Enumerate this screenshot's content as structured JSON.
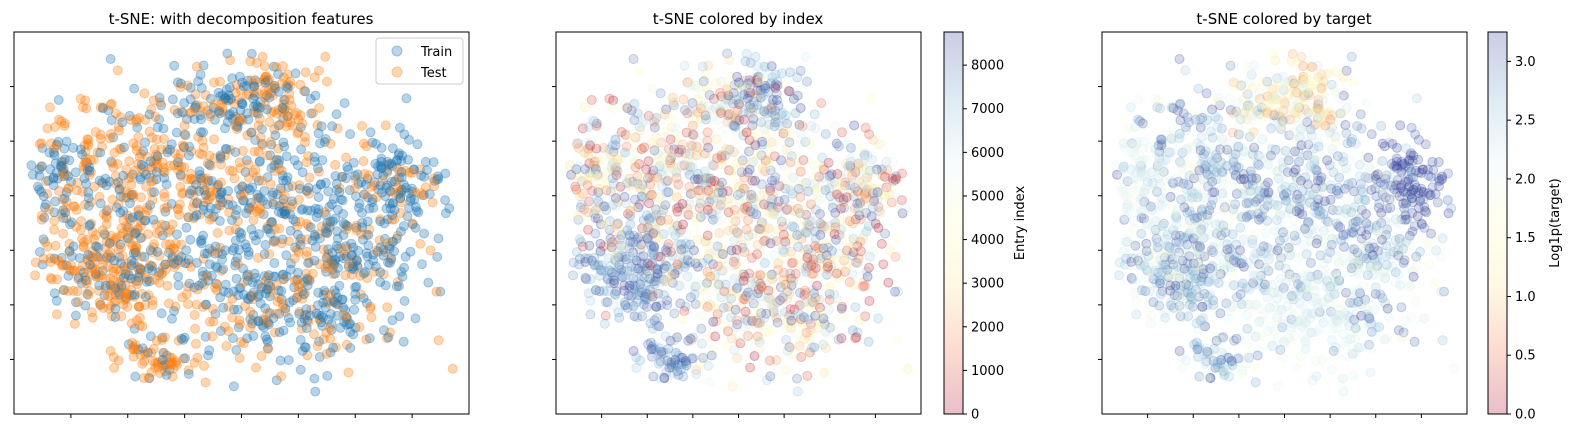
{
  "chart_data": [
    {
      "type": "scatter",
      "title": "t-SNE: with decomposition features",
      "xlabel": "",
      "ylabel": "",
      "x_tick_labels_visible": false,
      "y_tick_labels_visible": false,
      "xlim": [
        -50,
        50
      ],
      "ylim": [
        -50,
        50
      ],
      "legend": {
        "placement": "top-right",
        "entries": [
          "Train",
          "Test"
        ]
      },
      "series": [
        {
          "name": "Train",
          "color": "#1f77b4",
          "alpha": 0.2
        },
        {
          "name": "Test",
          "color": "#ff7f0e",
          "alpha": 0.2
        }
      ]
    },
    {
      "type": "scatter",
      "title": "t-SNE colored by index",
      "xlabel": "",
      "ylabel": "",
      "x_tick_labels_visible": false,
      "y_tick_labels_visible": false,
      "xlim": [
        -50,
        50
      ],
      "ylim": [
        -50,
        50
      ],
      "colormap": "RdYlBu",
      "colormap_stops": [
        "#a50026",
        "#f46d43",
        "#fee090",
        "#ffffbf",
        "#e0f3f8",
        "#74add1",
        "#313695"
      ],
      "alpha": 0.2,
      "colorbar": {
        "label": "Entry index",
        "range": [
          0,
          8760
        ],
        "ticks": [
          0,
          1000,
          2000,
          3000,
          4000,
          5000,
          6000,
          7000,
          8000
        ],
        "tick_labels": [
          "0",
          "1000",
          "2000",
          "3000",
          "4000",
          "5000",
          "6000",
          "7000",
          "8000"
        ]
      }
    },
    {
      "type": "scatter",
      "title": "t-SNE colored by target",
      "xlabel": "",
      "ylabel": "",
      "x_tick_labels_visible": false,
      "y_tick_labels_visible": false,
      "xlim": [
        -50,
        50
      ],
      "ylim": [
        -50,
        50
      ],
      "colormap": "RdYlBu",
      "colormap_stops": [
        "#a50026",
        "#f46d43",
        "#fee090",
        "#ffffbf",
        "#e0f3f8",
        "#74add1",
        "#313695"
      ],
      "alpha": 0.2,
      "colorbar": {
        "label": "Log1p(target)",
        "range": [
          0,
          3.25
        ],
        "ticks": [
          0,
          0.5,
          1,
          1.5,
          2,
          2.5,
          3
        ],
        "tick_labels": [
          "0.0",
          "0.5",
          "1.0",
          "1.5",
          "2.0",
          "2.5",
          "3.0"
        ]
      }
    }
  ]
}
